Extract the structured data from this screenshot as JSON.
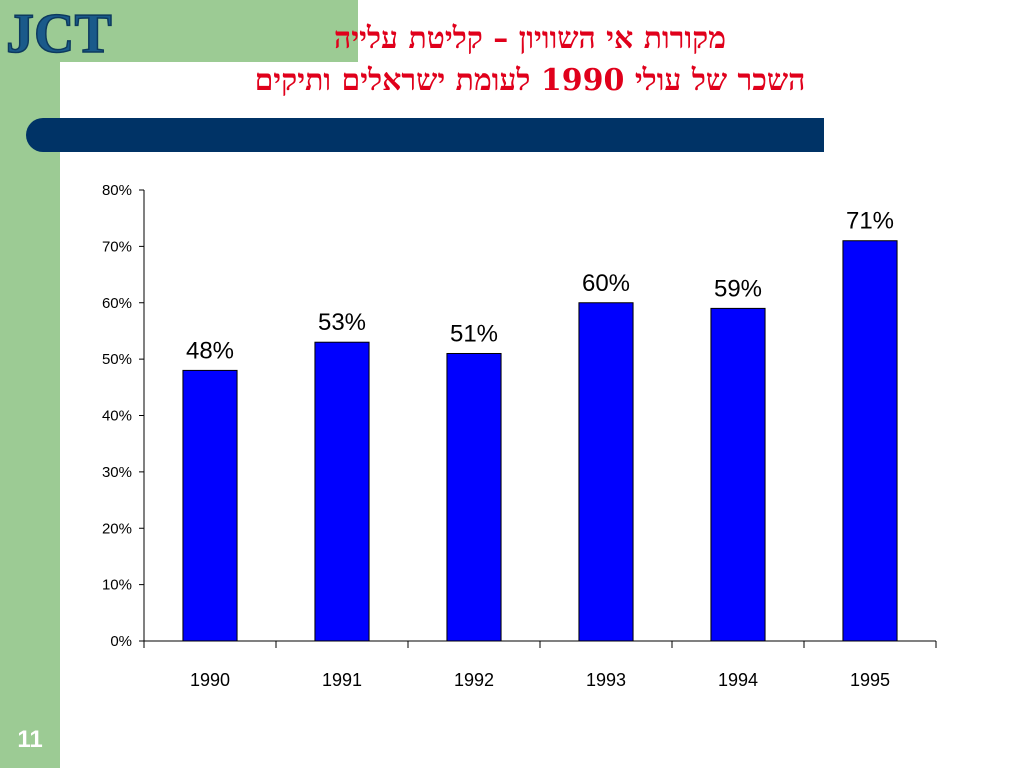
{
  "slide": {
    "logo_text": "JCT",
    "title_line1": "מקורות אי השוויון – קליטת עלייה",
    "title_line2": "השכר של עולי 1990 לעומת ישראלים ותיקים",
    "page_number": "11",
    "colors": {
      "title": "#e0001b",
      "band": "#9ccb94",
      "bar_divider": "#003366",
      "logo": "#1a5a8a"
    }
  },
  "chart_data": {
    "type": "bar",
    "title": "",
    "xlabel": "",
    "ylabel": "",
    "categories": [
      "1990",
      "1991",
      "1992",
      "1993",
      "1994",
      "1995"
    ],
    "values": [
      48,
      53,
      51,
      60,
      59,
      71
    ],
    "data_labels": [
      "48%",
      "53%",
      "51%",
      "60%",
      "59%",
      "71%"
    ],
    "ylim": [
      0,
      80
    ],
    "yticks": [
      "0%",
      "10%",
      "20%",
      "30%",
      "40%",
      "50%",
      "60%",
      "70%",
      "80%"
    ],
    "grid": false,
    "legend": "none",
    "bar_color": "#0000ff"
  }
}
